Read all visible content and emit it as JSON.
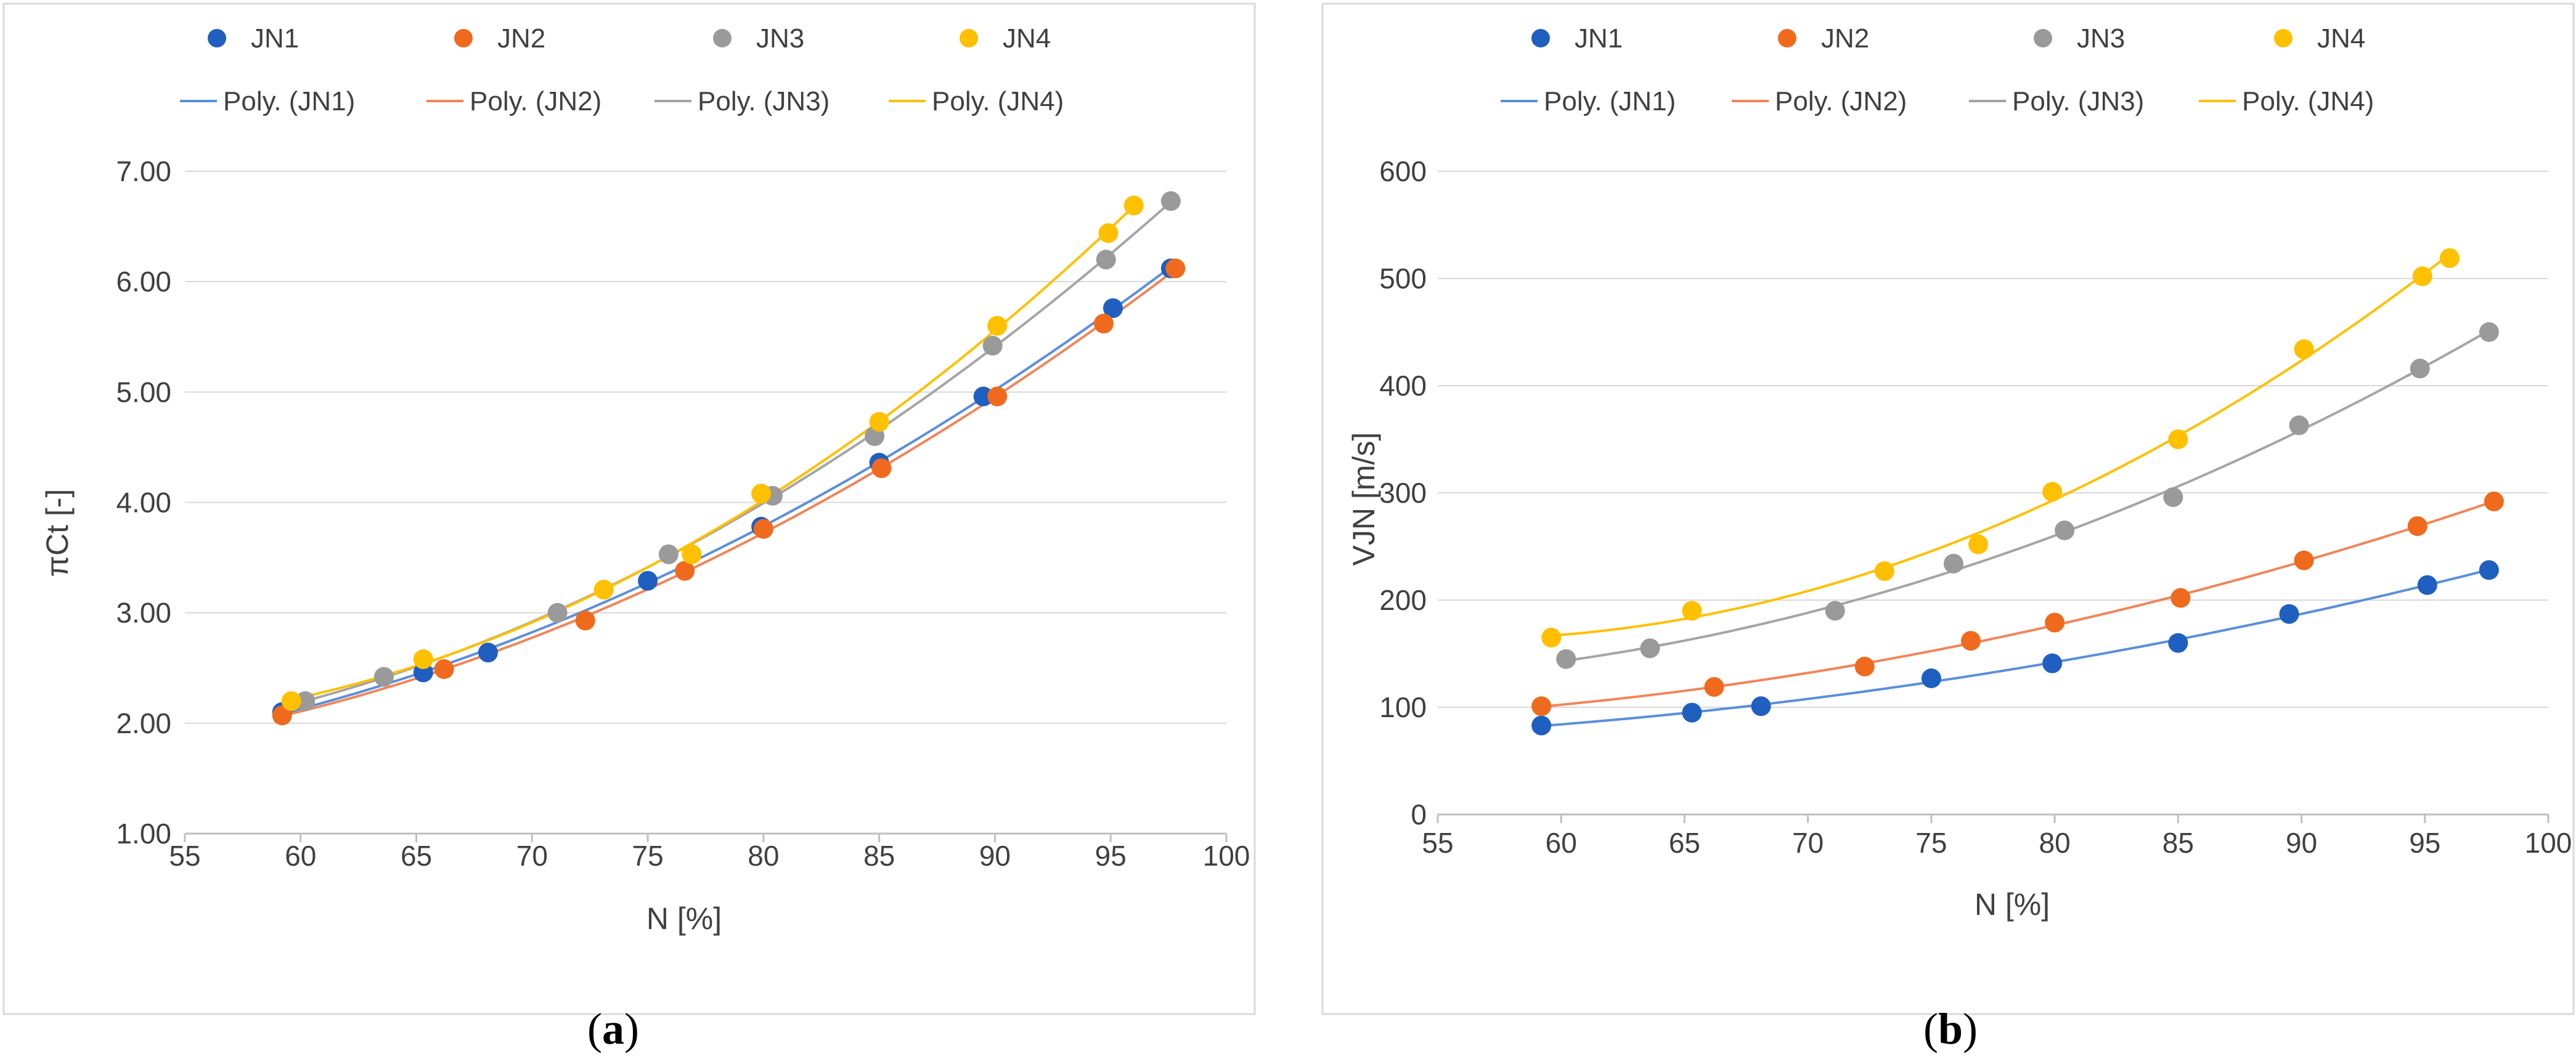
{
  "chart_data": [
    {
      "type": "scatter",
      "panel": "a",
      "caption": "(a)",
      "caption_open": "(",
      "caption_letter": "a",
      "caption_close": ")",
      "xlabel": "N [%]",
      "ylabel": "πCt [-]",
      "xlim": [
        55,
        100
      ],
      "ylim": [
        1.0,
        7.0
      ],
      "xticks": [
        55,
        60,
        65,
        70,
        75,
        80,
        85,
        90,
        95,
        100
      ],
      "xtick_labels": [
        "55",
        "60",
        "65",
        "70",
        "75",
        "80",
        "85",
        "90",
        "95",
        "100"
      ],
      "yticks": [
        1.0,
        2.0,
        3.0,
        4.0,
        5.0,
        6.0,
        7.0
      ],
      "ytick_labels": [
        "1.00",
        "2.00",
        "3.00",
        "4.00",
        "5.00",
        "6.00",
        "7.00"
      ],
      "grid": true,
      "legend_position": "top",
      "series": [
        {
          "name": "JN1",
          "trend_name": "Poly. (JN1)",
          "color": "#1f5fbf",
          "line_color": "#5b8fd9",
          "x": [
            59.2,
            65.3,
            68.1,
            75.0,
            79.9,
            85.0,
            89.5,
            95.1,
            97.6
          ],
          "y": [
            2.1,
            2.46,
            2.64,
            3.29,
            3.78,
            4.36,
            4.96,
            5.76,
            6.12
          ]
        },
        {
          "name": "JN2",
          "trend_name": "Poly. (JN2)",
          "color": "#f06a1d",
          "line_color": "#f0855a",
          "x": [
            59.2,
            66.2,
            72.3,
            76.6,
            80.0,
            85.1,
            90.1,
            94.7,
            97.8
          ],
          "y": [
            2.07,
            2.49,
            2.93,
            3.38,
            3.76,
            4.31,
            4.96,
            5.62,
            6.12
          ]
        },
        {
          "name": "JN3",
          "trend_name": "Poly. (JN3)",
          "color": "#9a9a9a",
          "line_color": "#a5a5a5",
          "x": [
            60.2,
            63.6,
            71.1,
            75.9,
            80.4,
            84.8,
            89.9,
            94.8,
            97.6
          ],
          "y": [
            2.2,
            2.42,
            3.0,
            3.53,
            4.06,
            4.6,
            5.42,
            6.2,
            6.73
          ]
        },
        {
          "name": "JN4",
          "trend_name": "Poly. (JN4)",
          "color": "#ffc000",
          "line_color": "#ffc000",
          "x": [
            59.6,
            65.3,
            73.1,
            76.9,
            79.9,
            85.0,
            90.1,
            94.9,
            96.0
          ],
          "y": [
            2.2,
            2.58,
            3.21,
            3.53,
            4.08,
            4.73,
            5.6,
            6.44,
            6.69
          ]
        }
      ]
    },
    {
      "type": "scatter",
      "panel": "b",
      "caption": "(b)",
      "caption_open": "(",
      "caption_letter": "b",
      "caption_close": ")",
      "xlabel": "N [%]",
      "ylabel": "VJN [m/s]",
      "xlim": [
        55,
        100
      ],
      "ylim": [
        0,
        600
      ],
      "xticks": [
        55,
        60,
        65,
        70,
        75,
        80,
        85,
        90,
        95,
        100
      ],
      "xtick_labels": [
        "55",
        "60",
        "65",
        "70",
        "75",
        "80",
        "85",
        "90",
        "95",
        "100"
      ],
      "yticks": [
        0,
        100,
        200,
        300,
        400,
        500,
        600
      ],
      "ytick_labels": [
        "0",
        "100",
        "200",
        "300",
        "400",
        "500",
        "600"
      ],
      "grid": true,
      "legend_position": "top",
      "series": [
        {
          "name": "JN1",
          "trend_name": "Poly. (JN1)",
          "color": "#1f5fbf",
          "line_color": "#5b8fd9",
          "x": [
            59.2,
            65.3,
            68.1,
            75.0,
            79.9,
            85.0,
            89.5,
            95.1,
            97.6
          ],
          "y": [
            83,
            95,
            101,
            127,
            141,
            160,
            187,
            214,
            228
          ]
        },
        {
          "name": "JN2",
          "trend_name": "Poly. (JN2)",
          "color": "#f06a1d",
          "line_color": "#f0855a",
          "x": [
            59.2,
            66.2,
            72.3,
            76.6,
            80.0,
            85.1,
            90.1,
            94.7,
            97.8
          ],
          "y": [
            101,
            119,
            138,
            162,
            179,
            202,
            237,
            269,
            292
          ]
        },
        {
          "name": "JN3",
          "trend_name": "Poly. (JN3)",
          "color": "#9a9a9a",
          "line_color": "#a5a5a5",
          "x": [
            60.2,
            63.6,
            71.1,
            75.9,
            80.4,
            84.8,
            89.9,
            94.8,
            97.6
          ],
          "y": [
            145,
            155,
            190,
            234,
            265,
            296,
            363,
            416,
            450
          ]
        },
        {
          "name": "JN4",
          "trend_name": "Poly. (JN4)",
          "color": "#ffc000",
          "line_color": "#ffc000",
          "x": [
            59.6,
            65.3,
            73.1,
            76.9,
            79.9,
            85.0,
            90.1,
            94.9,
            96.0
          ],
          "y": [
            165,
            190,
            227,
            252,
            301,
            350,
            434,
            502,
            519
          ]
        }
      ]
    }
  ]
}
